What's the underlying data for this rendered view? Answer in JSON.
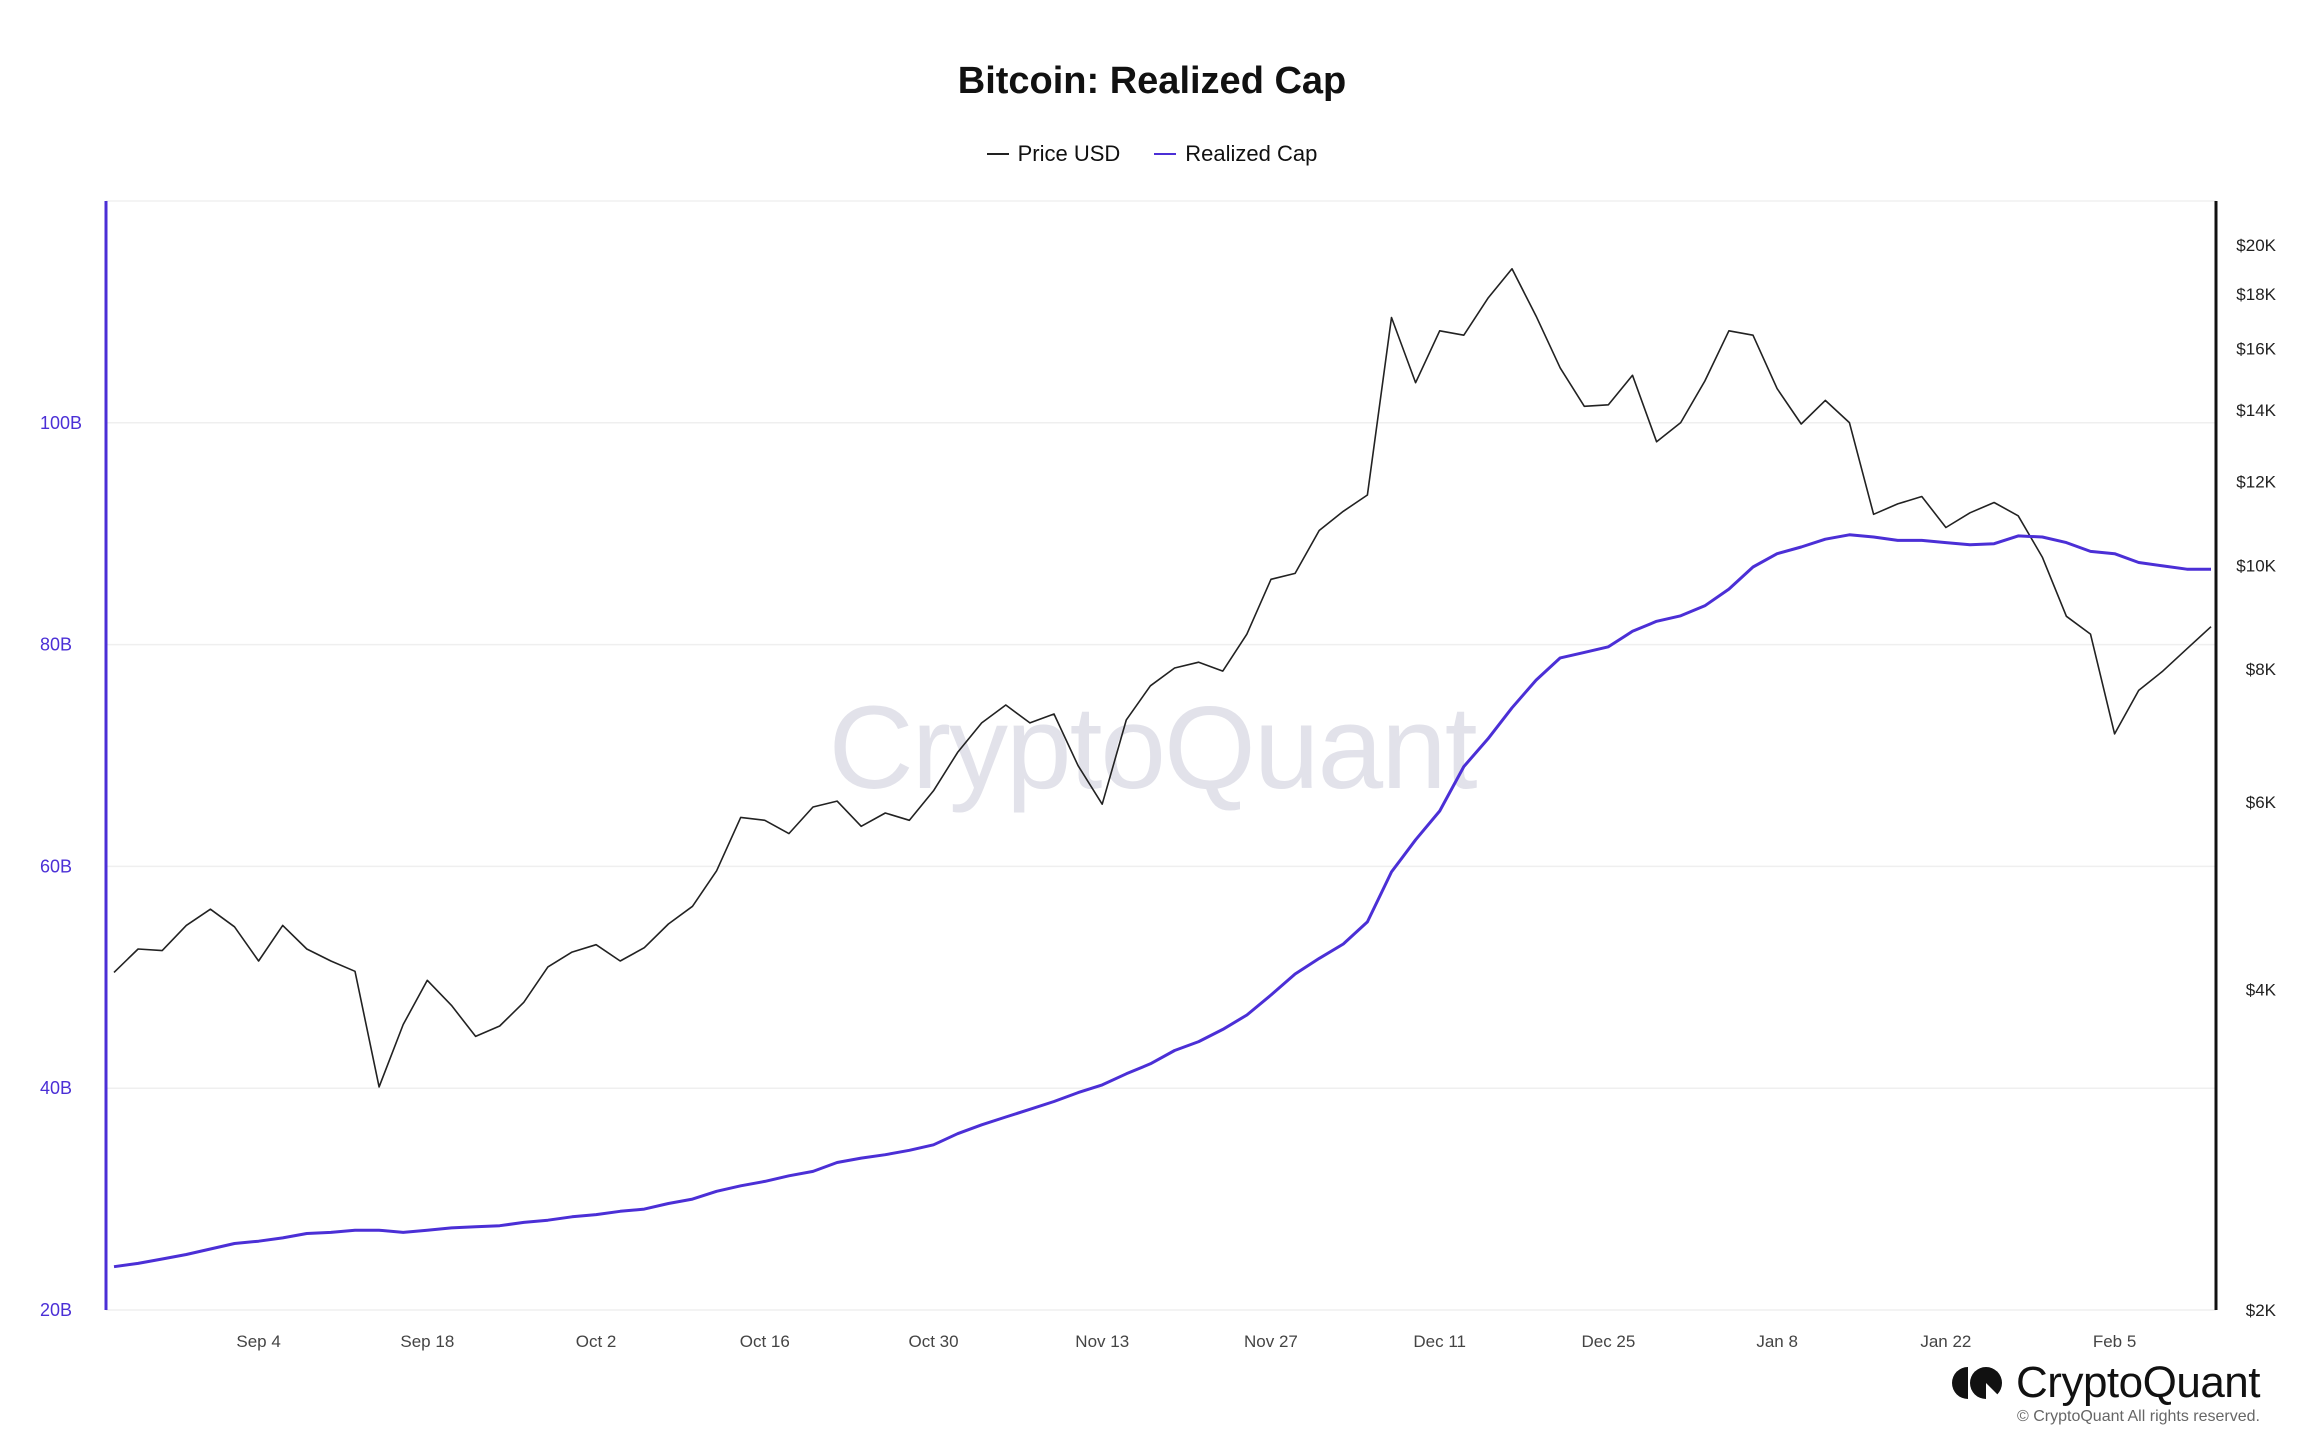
{
  "chart_data": {
    "type": "line",
    "title": "Bitcoin: Realized Cap",
    "legend_position": "top",
    "grid": true,
    "colors": {
      "price": "#222222",
      "realized_cap": "#4b2fd6"
    },
    "left_axis": {
      "series": "Realized Cap",
      "range_billions": [
        20,
        120
      ],
      "ticks": [
        20,
        40,
        60,
        80,
        100
      ],
      "tick_labels": [
        "20B",
        "40B",
        "60B",
        "80B",
        "100B"
      ]
    },
    "right_axis": {
      "series": "Price USD",
      "scale": "log",
      "range_usd": [
        2000,
        22000
      ],
      "ticks": [
        2000,
        4000,
        6000,
        8000,
        10000,
        12000,
        14000,
        16000,
        18000,
        20000
      ],
      "tick_labels": [
        "$2K",
        "$4K",
        "$6K",
        "$8K",
        "$10K",
        "$12K",
        "$14K",
        "$16K",
        "$18K",
        "$20K"
      ]
    },
    "x_ticks": [
      {
        "date": "2017-09-04",
        "label": "Sep 4"
      },
      {
        "date": "2017-09-18",
        "label": "Sep 18"
      },
      {
        "date": "2017-10-02",
        "label": "Oct 2"
      },
      {
        "date": "2017-10-16",
        "label": "Oct 16"
      },
      {
        "date": "2017-10-30",
        "label": "Oct 30"
      },
      {
        "date": "2017-11-13",
        "label": "Nov 13"
      },
      {
        "date": "2017-11-27",
        "label": "Nov 27"
      },
      {
        "date": "2017-12-11",
        "label": "Dec 11"
      },
      {
        "date": "2017-12-25",
        "label": "Dec 25"
      },
      {
        "date": "2018-01-08",
        "label": "Jan 8"
      },
      {
        "date": "2018-01-22",
        "label": "Jan 22"
      },
      {
        "date": "2018-02-05",
        "label": "Feb 5"
      }
    ],
    "x": [
      "2017-08-23",
      "2017-08-25",
      "2017-08-27",
      "2017-08-29",
      "2017-08-31",
      "2017-09-02",
      "2017-09-04",
      "2017-09-06",
      "2017-09-08",
      "2017-09-10",
      "2017-09-12",
      "2017-09-14",
      "2017-09-16",
      "2017-09-18",
      "2017-09-20",
      "2017-09-22",
      "2017-09-24",
      "2017-09-26",
      "2017-09-28",
      "2017-09-30",
      "2017-10-02",
      "2017-10-04",
      "2017-10-06",
      "2017-10-08",
      "2017-10-10",
      "2017-10-12",
      "2017-10-14",
      "2017-10-16",
      "2017-10-18",
      "2017-10-20",
      "2017-10-22",
      "2017-10-24",
      "2017-10-26",
      "2017-10-28",
      "2017-10-30",
      "2017-11-01",
      "2017-11-03",
      "2017-11-05",
      "2017-11-07",
      "2017-11-09",
      "2017-11-11",
      "2017-11-13",
      "2017-11-15",
      "2017-11-17",
      "2017-11-19",
      "2017-11-21",
      "2017-11-23",
      "2017-11-25",
      "2017-11-27",
      "2017-11-29",
      "2017-12-01",
      "2017-12-03",
      "2017-12-05",
      "2017-12-07",
      "2017-12-09",
      "2017-12-11",
      "2017-12-13",
      "2017-12-15",
      "2017-12-17",
      "2017-12-19",
      "2017-12-21",
      "2017-12-23",
      "2017-12-25",
      "2017-12-27",
      "2017-12-29",
      "2017-12-31",
      "2018-01-02",
      "2018-01-04",
      "2018-01-06",
      "2018-01-08",
      "2018-01-10",
      "2018-01-12",
      "2018-01-14",
      "2018-01-16",
      "2018-01-18",
      "2018-01-20",
      "2018-01-22",
      "2018-01-24",
      "2018-01-26",
      "2018-01-28",
      "2018-01-30",
      "2018-02-01",
      "2018-02-03",
      "2018-02-05",
      "2018-02-07",
      "2018-02-09",
      "2018-02-11",
      "2018-02-13"
    ],
    "series": [
      {
        "name": "Price USD",
        "axis": "right",
        "values": [
          4150,
          4365,
          4350,
          4594,
          4758,
          4580,
          4254,
          4594,
          4365,
          4254,
          4160,
          3240,
          3708,
          4080,
          3865,
          3614,
          3696,
          3890,
          4200,
          4336,
          4406,
          4254,
          4378,
          4608,
          4788,
          5170,
          5802,
          5766,
          5602,
          5934,
          6010,
          5692,
          5858,
          5766,
          6146,
          6678,
          7118,
          7398,
          7118,
          7256,
          6488,
          5970,
          7164,
          7712,
          8014,
          8116,
          7962,
          8624,
          9710,
          9834,
          10790,
          11246,
          11650,
          17102,
          14852,
          16618,
          16460,
          17826,
          19002,
          17154,
          15334,
          14114,
          14158,
          15092,
          13072,
          13626,
          14904,
          16618,
          16460,
          14664,
          13584,
          14294,
          13626,
          11174,
          11428,
          11612,
          10860,
          11210,
          11464,
          11138,
          10186,
          8962,
          8624,
          6950,
          7636,
          7962,
          8354,
          8764
        ]
      },
      {
        "name": "Realized Cap",
        "axis": "left",
        "unit": "B",
        "values": [
          23.9,
          24.2,
          24.6,
          25.0,
          25.5,
          26.0,
          26.2,
          26.5,
          26.9,
          27.0,
          27.2,
          27.2,
          27.0,
          27.2,
          27.4,
          27.5,
          27.6,
          27.9,
          28.1,
          28.4,
          28.6,
          28.9,
          29.1,
          29.6,
          30.0,
          30.7,
          31.2,
          31.6,
          32.1,
          32.5,
          33.3,
          33.7,
          34.0,
          34.4,
          34.9,
          35.9,
          36.7,
          37.4,
          38.1,
          38.8,
          39.6,
          40.3,
          41.3,
          42.2,
          43.4,
          44.2,
          45.3,
          46.6,
          48.4,
          50.3,
          51.7,
          53.0,
          55.0,
          59.5,
          62.4,
          65.0,
          69.0,
          71.5,
          74.3,
          76.8,
          78.8,
          79.3,
          79.8,
          81.2,
          82.1,
          82.6,
          83.5,
          85.0,
          87.0,
          88.2,
          88.8,
          89.5,
          89.9,
          89.7,
          89.4,
          89.4,
          89.2,
          89.0,
          89.1,
          89.8,
          89.7,
          89.2,
          88.4,
          88.2,
          87.4,
          87.1,
          86.8,
          86.8
        ]
      }
    ]
  },
  "watermark": "CryptoQuant",
  "brand": {
    "name": "CryptoQuant",
    "copyright": "© CryptoQuant All rights reserved."
  }
}
